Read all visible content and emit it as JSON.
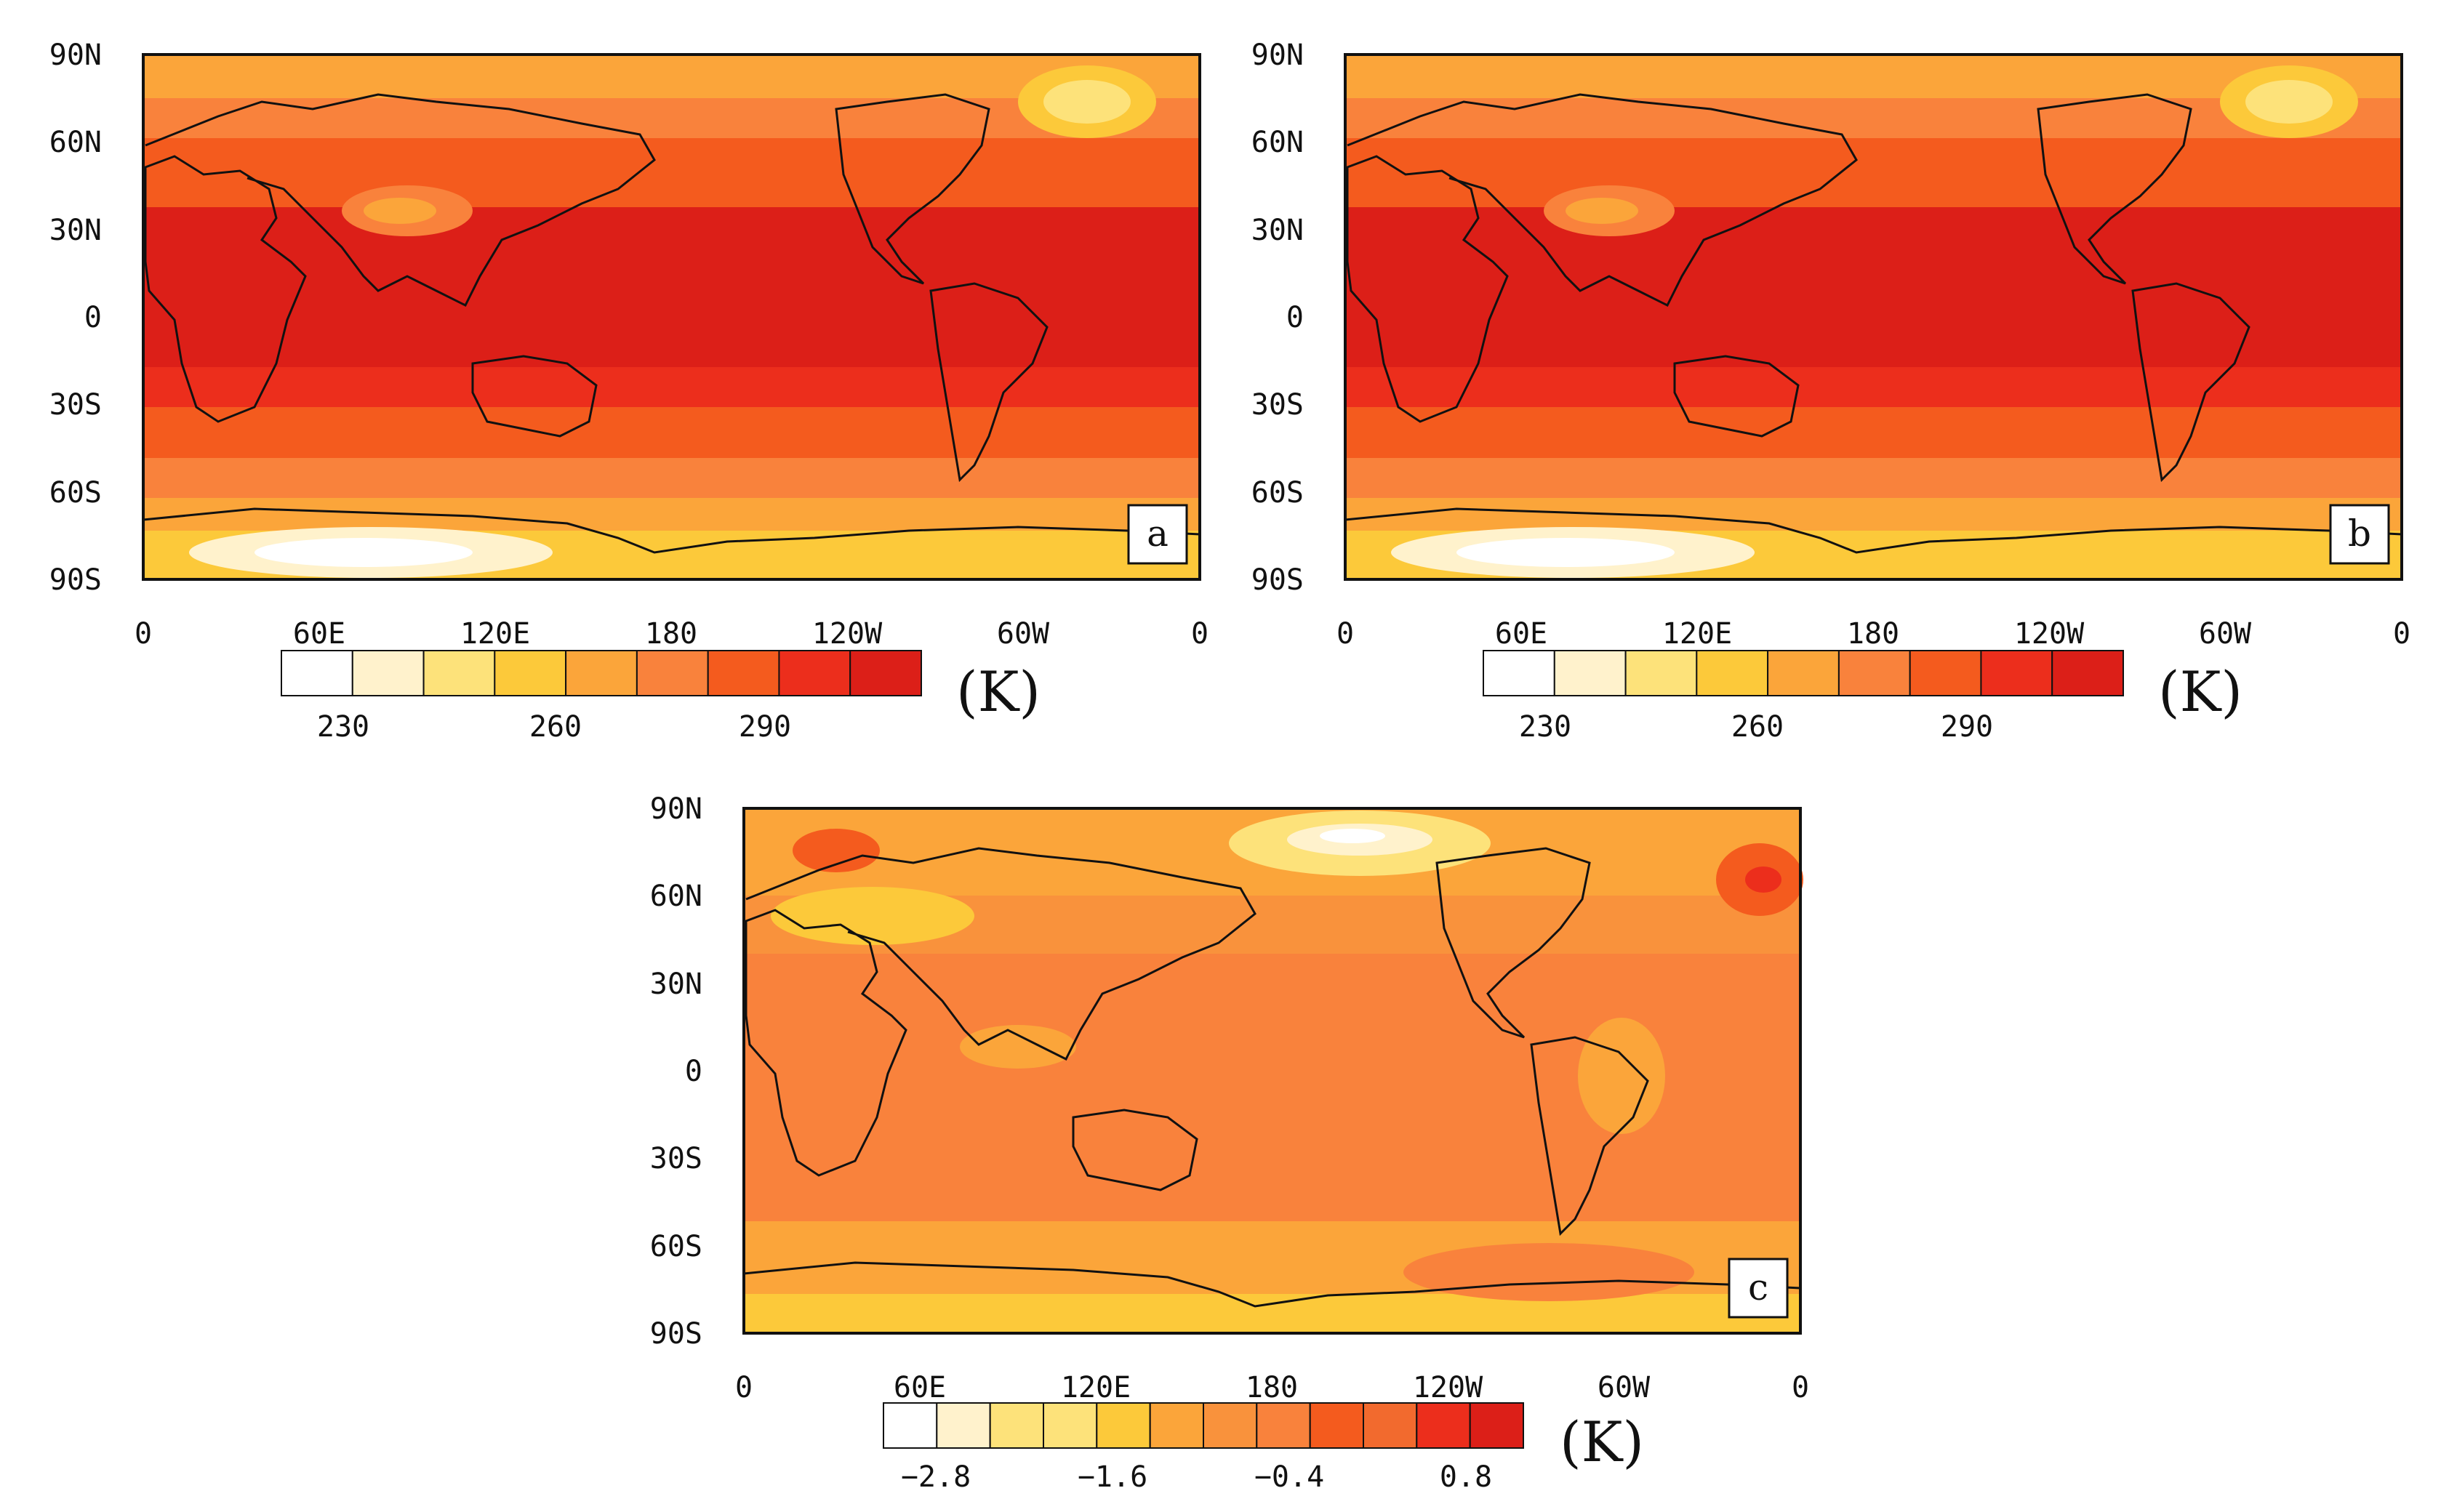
{
  "panels": [
    {
      "id": "a",
      "label": "a",
      "lat_ticks": [
        "90N",
        "60N",
        "30N",
        "0",
        "30S",
        "60S",
        "90S"
      ],
      "lon_ticks": [
        "0",
        "60E",
        "120E",
        "180",
        "120W",
        "60W",
        "0"
      ],
      "colorbar": {
        "unit": "(K)",
        "labels": [
          "230",
          "260",
          "290"
        ],
        "colors": [
          "#ffffff",
          "#fff2cc",
          "#fde27a",
          "#fcc93a",
          "#fba53a",
          "#f9823c",
          "#f45b1e",
          "#ec2e1c",
          "#dc1f18"
        ]
      }
    },
    {
      "id": "b",
      "label": "b",
      "lat_ticks": [
        "90N",
        "60N",
        "30N",
        "0",
        "30S",
        "60S",
        "90S"
      ],
      "lon_ticks": [
        "0",
        "60E",
        "120E",
        "180",
        "120W",
        "60W",
        "0"
      ],
      "colorbar": {
        "unit": "(K)",
        "labels": [
          "230",
          "260",
          "290"
        ],
        "colors": [
          "#ffffff",
          "#fff2cc",
          "#fde27a",
          "#fcc93a",
          "#fba53a",
          "#f9823c",
          "#f45b1e",
          "#ec2e1c",
          "#dc1f18"
        ]
      }
    },
    {
      "id": "c",
      "label": "c",
      "lat_ticks": [
        "90N",
        "60N",
        "30N",
        "0",
        "30S",
        "60S",
        "90S"
      ],
      "lon_ticks": [
        "0",
        "60E",
        "120E",
        "180",
        "120W",
        "60W",
        "0"
      ],
      "colorbar": {
        "unit": "(K)",
        "labels": [
          "−2.8",
          "−1.6",
          "−0.4",
          "0.8"
        ],
        "colors": [
          "#ffffff",
          "#fff2cc",
          "#fde27a",
          "#fde27a",
          "#fcc93a",
          "#fba53a",
          "#f9923c",
          "#f9823c",
          "#f45b1e",
          "#f26a2e",
          "#ec2e1c",
          "#dc1f18"
        ]
      }
    }
  ]
}
